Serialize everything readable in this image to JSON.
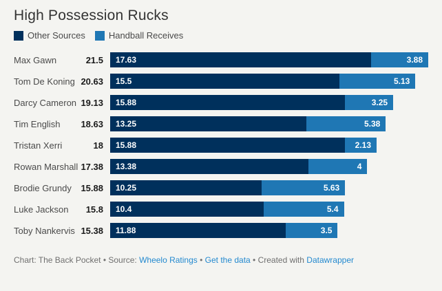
{
  "title": "High Possession Rucks",
  "legend": [
    {
      "label": "Other Sources",
      "color": "#00305c"
    },
    {
      "label": "Handball Receives",
      "color": "#1f77b4"
    }
  ],
  "colors": {
    "background": "#f4f4f1",
    "dark_series": "#00305c",
    "light_series": "#1f77b4",
    "bar_value_text": "#ffffff",
    "link": "#2389cf"
  },
  "chart_data": {
    "type": "bar",
    "orientation": "horizontal",
    "stacked": true,
    "title": "High Possession Rucks",
    "xlabel": "",
    "ylabel": "",
    "xlim": [
      0,
      21.5
    ],
    "grid": false,
    "legend_position": "top",
    "categories": [
      "Max Gawn",
      "Tom De Koning",
      "Darcy Cameron",
      "Tim English",
      "Tristan Xerri",
      "Rowan Marshall",
      "Brodie Grundy",
      "Luke Jackson",
      "Toby Nankervis"
    ],
    "totals": [
      21.5,
      20.63,
      19.13,
      18.63,
      18,
      17.38,
      15.88,
      15.8,
      15.38
    ],
    "series": [
      {
        "name": "Other Sources",
        "color": "#00305c",
        "values": [
          17.63,
          15.5,
          15.88,
          13.25,
          15.88,
          13.38,
          10.25,
          10.4,
          11.88
        ]
      },
      {
        "name": "Handball Receives",
        "color": "#1f77b4",
        "values": [
          3.88,
          5.13,
          3.25,
          5.38,
          2.13,
          4,
          5.63,
          5.4,
          3.5
        ]
      }
    ]
  },
  "footer": {
    "parts": [
      {
        "text": "Chart: The Back Pocket • Source: ",
        "link": false
      },
      {
        "text": "Wheelo Ratings",
        "link": true
      },
      {
        "text": " • ",
        "link": false
      },
      {
        "text": "Get the data",
        "link": true
      },
      {
        "text": " • Created with ",
        "link": false
      },
      {
        "text": "Datawrapper",
        "link": true
      }
    ]
  }
}
